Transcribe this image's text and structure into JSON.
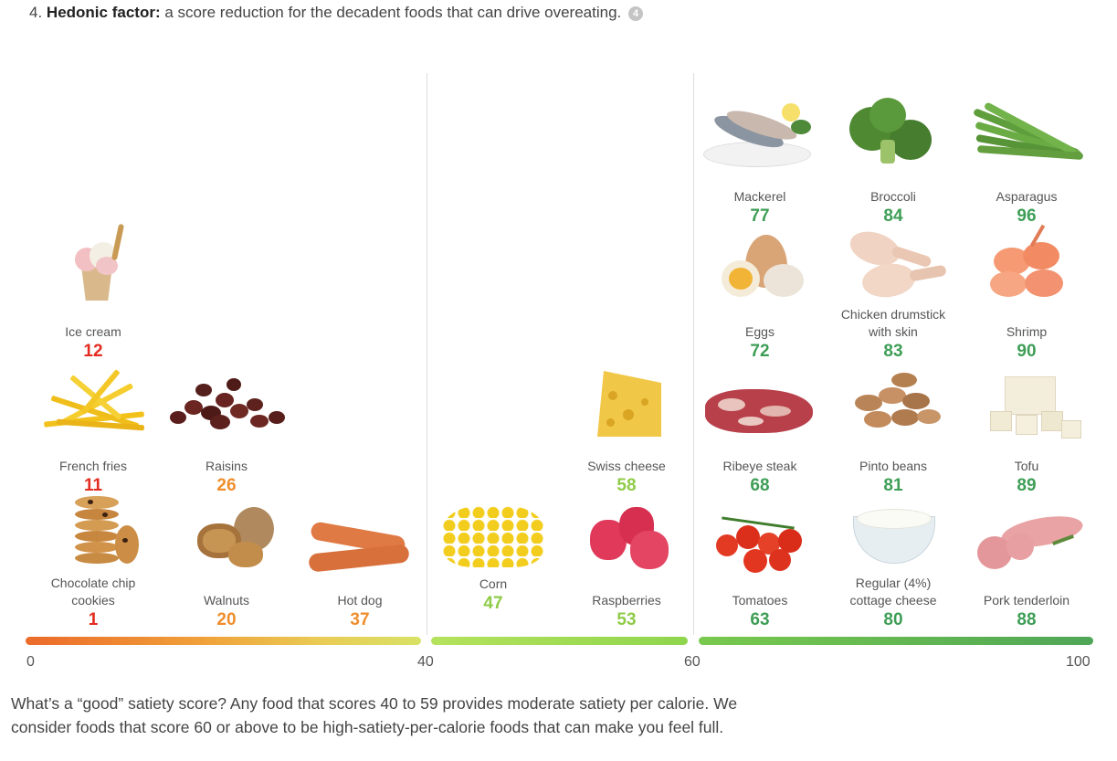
{
  "intro": {
    "number": "4.",
    "title": "Hedonic factor:",
    "text": " a score reduction for the decadent foods that can drive overeating.",
    "footnote": "4"
  },
  "scale": {
    "ticks": [
      "0",
      "40",
      "60",
      "100"
    ]
  },
  "colors": {
    "low": "#e32c1f",
    "mid_low": "#ef8d2b",
    "moderate": "#8fcb47",
    "high": "#3e9e56"
  },
  "foods": [
    {
      "name": "Ice cream",
      "score": "12",
      "color": "#e32c1f",
      "icon": "ice-cream-icon"
    },
    {
      "name": "French fries",
      "score": "11",
      "color": "#e32c1f",
      "icon": "french-fries-icon"
    },
    {
      "name": "Raisins",
      "score": "26",
      "color": "#ef8d2b",
      "icon": "raisins-icon"
    },
    {
      "name": "Chocolate chip\ncookies",
      "score": "1",
      "color": "#e32c1f",
      "icon": "cookies-icon"
    },
    {
      "name": "Walnuts",
      "score": "20",
      "color": "#ef8d2b",
      "icon": "walnuts-icon"
    },
    {
      "name": "Hot dog",
      "score": "37",
      "color": "#ef8d2b",
      "icon": "hot-dog-icon"
    },
    {
      "name": "Corn",
      "score": "47",
      "color": "#8fcb47",
      "icon": "corn-icon"
    },
    {
      "name": "Swiss cheese",
      "score": "58",
      "color": "#8fcb47",
      "icon": "swiss-cheese-icon"
    },
    {
      "name": "Raspberries",
      "score": "53",
      "color": "#8fcb47",
      "icon": "raspberries-icon"
    },
    {
      "name": "Mackerel",
      "score": "77",
      "color": "#3e9e56",
      "icon": "mackerel-icon"
    },
    {
      "name": "Broccoli",
      "score": "84",
      "color": "#3e9e56",
      "icon": "broccoli-icon"
    },
    {
      "name": "Asparagus",
      "score": "96",
      "color": "#3e9e56",
      "icon": "asparagus-icon"
    },
    {
      "name": "Eggs",
      "score": "72",
      "color": "#3e9e56",
      "icon": "eggs-icon"
    },
    {
      "name": "Chicken drumstick\nwith skin",
      "score": "83",
      "color": "#3e9e56",
      "icon": "chicken-drumstick-icon"
    },
    {
      "name": "Shrimp",
      "score": "90",
      "color": "#3e9e56",
      "icon": "shrimp-icon"
    },
    {
      "name": "Ribeye steak",
      "score": "68",
      "color": "#3e9e56",
      "icon": "ribeye-steak-icon"
    },
    {
      "name": "Pinto beans",
      "score": "81",
      "color": "#3e9e56",
      "icon": "pinto-beans-icon"
    },
    {
      "name": "Tofu",
      "score": "89",
      "color": "#3e9e56",
      "icon": "tofu-icon"
    },
    {
      "name": "Tomatoes",
      "score": "63",
      "color": "#3e9e56",
      "icon": "tomatoes-icon"
    },
    {
      "name": "Regular (4%)\ncottage cheese",
      "score": "80",
      "color": "#3e9e56",
      "icon": "cottage-cheese-icon"
    },
    {
      "name": "Pork tenderloin",
      "score": "88",
      "color": "#3e9e56",
      "icon": "pork-tenderloin-icon"
    }
  ],
  "bottom_text": "What’s a “good” satiety score? Any food that scores 40 to 59 provides moderate satiety per calorie. We consider foods that score 60 or above to be high-satiety-per-calorie foods that can make you feel full."
}
